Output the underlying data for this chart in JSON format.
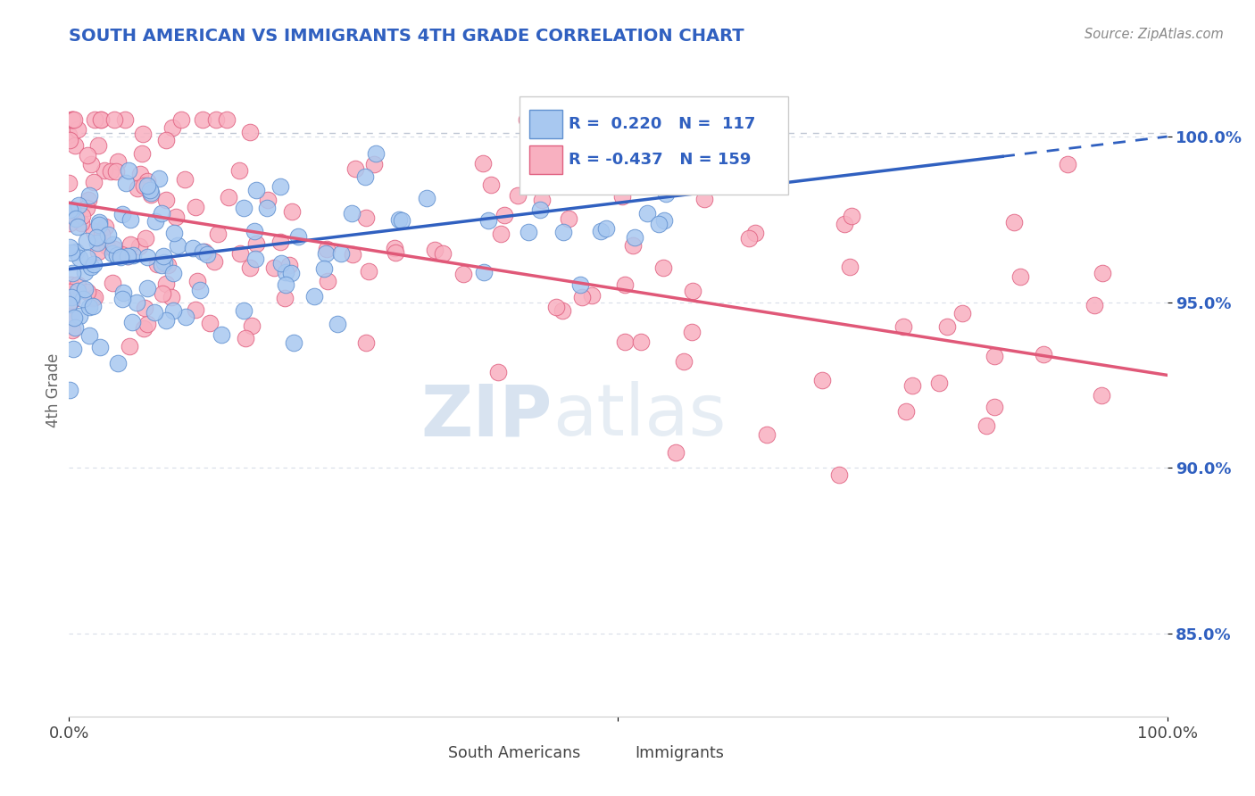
{
  "title": "SOUTH AMERICAN VS IMMIGRANTS 4TH GRADE CORRELATION CHART",
  "source_text": "Source: ZipAtlas.com",
  "ylabel": "4th Grade",
  "y_ticks": [
    0.85,
    0.9,
    0.95,
    1.0
  ],
  "y_tick_labels": [
    "85.0%",
    "90.0%",
    "95.0%",
    "100.0%"
  ],
  "x_range": [
    0.0,
    1.0
  ],
  "y_range": [
    0.825,
    1.022
  ],
  "blue_fill_color": "#A8C8F0",
  "blue_edge_color": "#6090D0",
  "pink_fill_color": "#F8B0C0",
  "pink_edge_color": "#E06080",
  "blue_line_color": "#3060C0",
  "pink_line_color": "#E05878",
  "dashed_line_color": "#B0B8C8",
  "legend_text_color": "#3060C0",
  "ytick_color": "#3060C0",
  "title_color": "#3060C0",
  "source_color": "#888888",
  "watermark_color": "#C0D4EC",
  "legend_R_blue": "R =  0.220",
  "legend_N_blue": "N =  117",
  "legend_R_pink": "R = -0.437",
  "legend_N_pink": "N = 159",
  "blue_intercept": 0.96,
  "blue_slope": 0.04,
  "pink_intercept": 0.98,
  "pink_slope": -0.052,
  "watermark_zip": "ZIP",
  "watermark_atlas": "atlas",
  "background_color": "#FFFFFF",
  "seed": 42
}
